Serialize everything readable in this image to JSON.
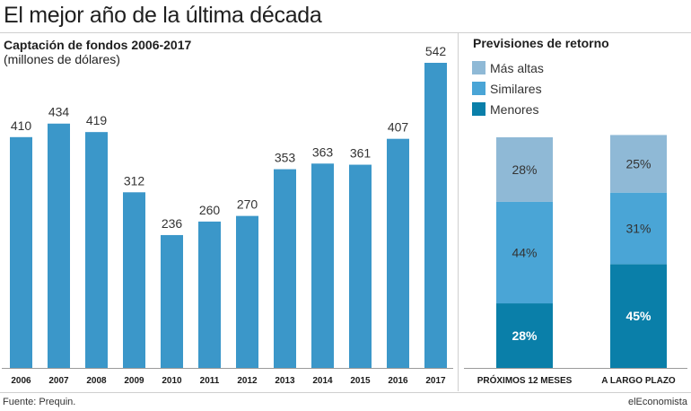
{
  "title": "El mejor año de la última década",
  "source": "Fuente: Prequin.",
  "brand": "elEconomista",
  "colors": {
    "bar": "#3b97c9",
    "mas_altas": "#8fb9d6",
    "similares": "#4aa5d6",
    "menores": "#0a7fa9"
  },
  "chart_data": [
    {
      "type": "bar",
      "title": "Captación de fondos 2006-2017",
      "subtitle": "(millones de dólares)",
      "categories": [
        "2006",
        "2007",
        "2008",
        "2009",
        "2010",
        "2011",
        "2012",
        "2013",
        "2014",
        "2015",
        "2016",
        "2017"
      ],
      "values": [
        410,
        434,
        419,
        312,
        236,
        260,
        270,
        353,
        363,
        361,
        407,
        542
      ],
      "ylim": [
        0,
        542
      ],
      "grid": false,
      "legend": "none"
    },
    {
      "type": "bar",
      "stacked": true,
      "title": "Previsiones de retorno",
      "categories": [
        "PRÓXIMOS 12 MESES",
        "A LARGO PLAZO"
      ],
      "series": [
        {
          "name": "Menores",
          "values": [
            28,
            45
          ],
          "labels": [
            "28%",
            "45%"
          ]
        },
        {
          "name": "Similares",
          "values": [
            44,
            31
          ],
          "labels": [
            "44%",
            "31%"
          ]
        },
        {
          "name": "Más altas",
          "values": [
            28,
            25
          ],
          "labels": [
            "28%",
            "25%"
          ]
        }
      ],
      "legend_order": [
        "Más altas",
        "Similares",
        "Menores"
      ],
      "ylim": [
        0,
        100
      ],
      "legend": "top-left"
    }
  ]
}
